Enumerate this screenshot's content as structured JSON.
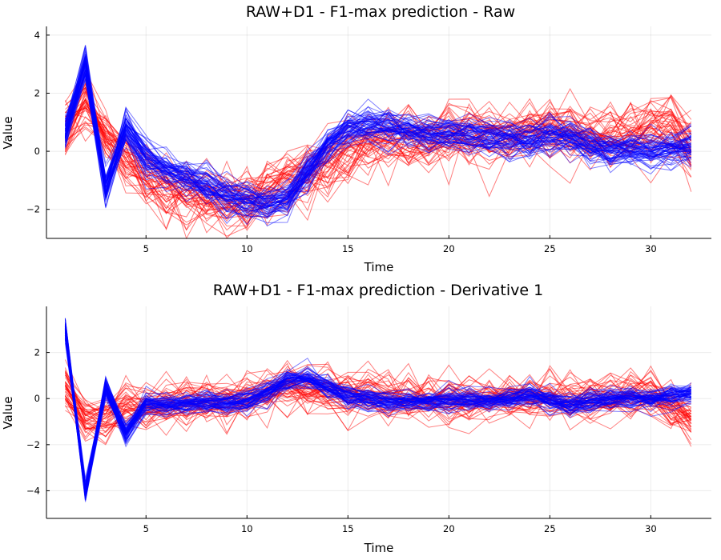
{
  "chart_data": [
    {
      "type": "line",
      "title": "RAW+D1 - F1-max prediction - Raw",
      "xlabel": "Time",
      "ylabel": "Value",
      "xlim": [
        0.07,
        33.0
      ],
      "ylim": [
        -3.0,
        4.3
      ],
      "xticks": [
        5,
        10,
        15,
        20,
        25,
        30
      ],
      "yticks": [
        -2,
        0,
        2,
        4
      ],
      "grid": true,
      "legend": "none",
      "series_colors": {
        "class_0": "#ff0000",
        "class_1": "#0000ff"
      },
      "line_opacity": 0.5,
      "x": [
        1,
        2,
        3,
        4,
        5,
        6,
        7,
        8,
        9,
        10,
        11,
        12,
        13,
        14,
        15,
        16,
        17,
        18,
        19,
        20,
        21,
        22,
        23,
        24,
        25,
        26,
        27,
        28,
        29,
        30,
        31,
        32
      ],
      "series": [
        {
          "group": "class_1",
          "count": 60,
          "spread": 0.25,
          "values": [
            0.6,
            3.0,
            -1.3,
            0.8,
            -0.2,
            -0.6,
            -0.9,
            -1.2,
            -1.5,
            -1.7,
            -1.8,
            -1.6,
            -0.7,
            0.2,
            0.8,
            0.9,
            0.8,
            0.7,
            0.6,
            0.6,
            0.55,
            0.5,
            0.4,
            0.4,
            0.6,
            0.5,
            0.2,
            0.05,
            0.0,
            0.0,
            0.1,
            0.2
          ]
        },
        {
          "group": "class_0",
          "count": 45,
          "spread": 0.5,
          "values": [
            0.8,
            1.8,
            0.5,
            -0.2,
            -0.9,
            -1.3,
            -1.5,
            -1.6,
            -1.7,
            -1.6,
            -1.4,
            -1.1,
            -0.8,
            -0.4,
            0.0,
            0.3,
            0.4,
            0.5,
            0.55,
            0.6,
            0.6,
            0.6,
            0.6,
            0.7,
            0.8,
            0.6,
            0.5,
            0.5,
            0.6,
            0.9,
            1.0,
            0.2
          ]
        }
      ]
    },
    {
      "type": "line",
      "title": "RAW+D1 - F1-max prediction - Derivative 1",
      "xlabel": "Time",
      "ylabel": "Value",
      "xlim": [
        0.07,
        33.0
      ],
      "ylim": [
        -5.2,
        4.0
      ],
      "xticks": [
        5,
        10,
        15,
        20,
        25,
        30
      ],
      "yticks": [
        -4,
        -2,
        0,
        2
      ],
      "grid": true,
      "legend": "none",
      "series_colors": {
        "class_0": "#ff0000",
        "class_1": "#0000ff"
      },
      "line_opacity": 0.5,
      "x": [
        1,
        2,
        3,
        4,
        5,
        6,
        7,
        8,
        9,
        10,
        11,
        12,
        13,
        14,
        15,
        16,
        17,
        18,
        19,
        20,
        21,
        22,
        23,
        24,
        25,
        26,
        27,
        28,
        29,
        30,
        31,
        32
      ],
      "series": [
        {
          "group": "class_1",
          "count": 60,
          "spread": 0.2,
          "values": [
            3.0,
            -4.0,
            0.5,
            -1.5,
            -0.2,
            -0.3,
            -0.2,
            -0.2,
            -0.2,
            -0.1,
            0.3,
            0.8,
            0.9,
            0.5,
            0.1,
            0.0,
            -0.1,
            -0.1,
            -0.1,
            -0.05,
            -0.1,
            -0.1,
            0.0,
            0.2,
            0.0,
            -0.3,
            -0.1,
            0.0,
            0.0,
            0.0,
            0.1,
            0.2
          ]
        },
        {
          "group": "class_0",
          "count": 45,
          "spread": 0.45,
          "values": [
            0.6,
            -0.8,
            -1.0,
            -0.3,
            -0.3,
            -0.2,
            -0.2,
            -0.1,
            0.0,
            0.2,
            0.5,
            0.6,
            0.4,
            0.3,
            0.3,
            0.2,
            0.1,
            0.1,
            0.1,
            0.05,
            0.0,
            0.0,
            0.0,
            0.1,
            0.1,
            0.0,
            0.0,
            0.1,
            0.2,
            0.3,
            -0.3,
            -0.8
          ]
        }
      ]
    }
  ]
}
